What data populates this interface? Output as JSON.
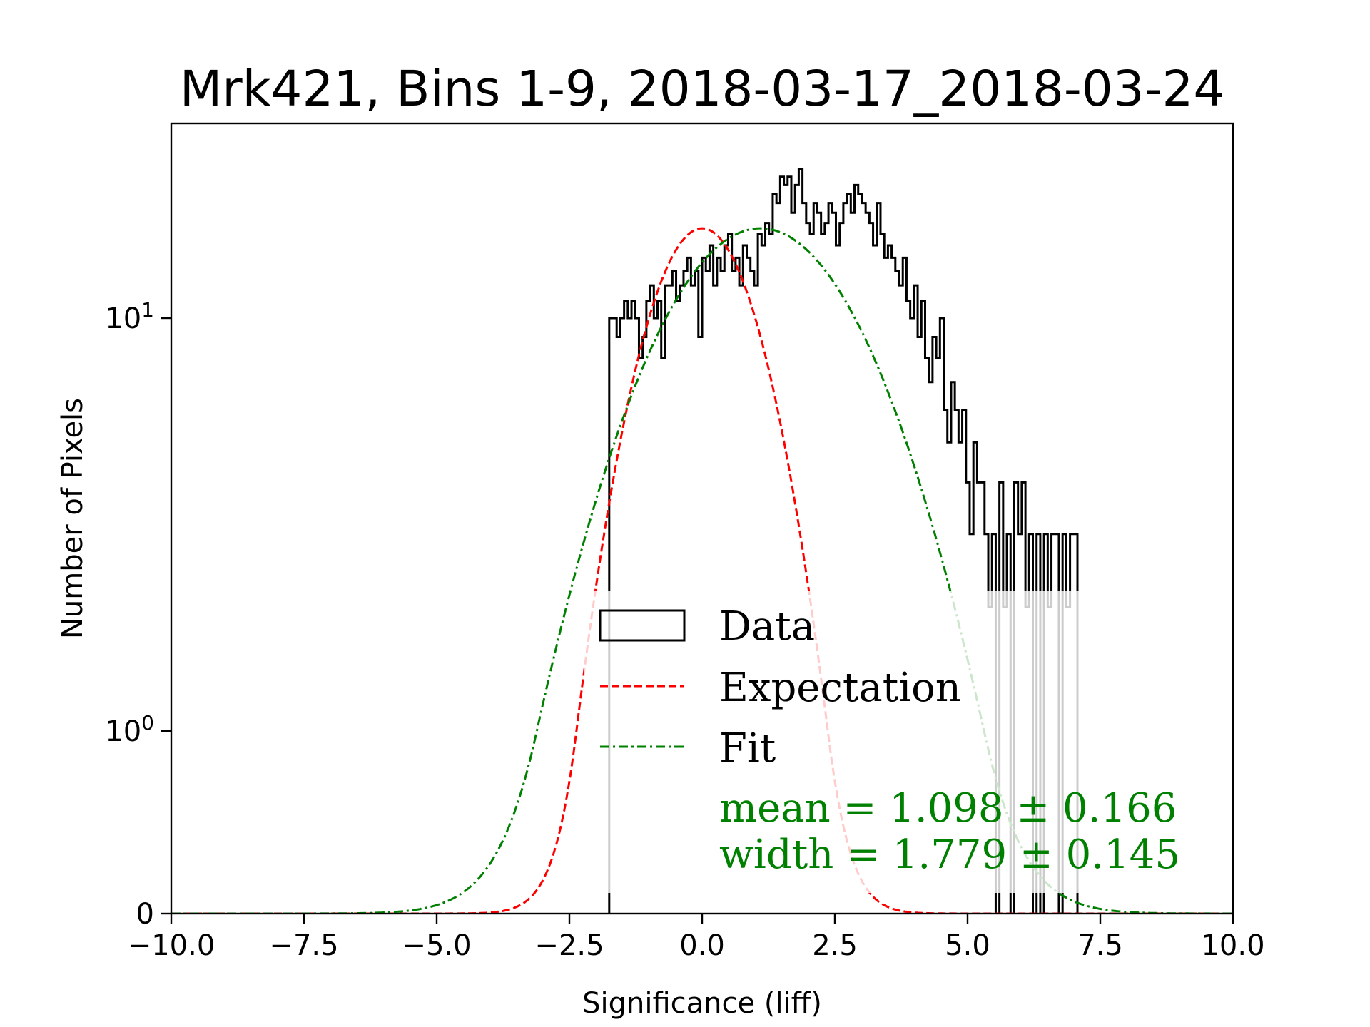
{
  "chart_data": {
    "type": "histogram",
    "title": "Mrk421, Bins 1-9, 2018-03-17_2018-03-24",
    "xlabel": "Significance (liff)",
    "ylabel": "Number of Pixels",
    "xlim": [
      -10,
      10
    ],
    "ylim": [
      0,
      29.6
    ],
    "yscale": "symlog",
    "symlog_linthresh": 1,
    "x_ticks": [
      -10,
      -7.5,
      -5,
      -2.5,
      0,
      2.5,
      5,
      7.5,
      10
    ],
    "x_tick_labels": [
      "−10.0",
      "−7.5",
      "−5.0",
      "−2.5",
      "0.0",
      "2.5",
      "5.0",
      "7.5",
      "10.0"
    ],
    "y_ticks": [
      0,
      1,
      10
    ],
    "y_tick_labels": [
      {
        "base": "0",
        "exp": ""
      },
      {
        "base": "10",
        "exp": "0"
      },
      {
        "base": "10",
        "exp": "1"
      }
    ],
    "grid": false,
    "legend": {
      "placement": "lower-center",
      "entries": [
        {
          "label": "Data",
          "style": "step-box",
          "color": "#000000"
        },
        {
          "label": "Expectation",
          "style": "dashed",
          "color": "#ff0000"
        },
        {
          "label": "Fit",
          "style": "dashdot",
          "color": "#008000"
        }
      ]
    },
    "annotation": {
      "lines": [
        "mean = 1.098 ± 0.166",
        "width = 1.779 ± 0.145"
      ],
      "color": "#008000"
    },
    "histogram": {
      "bin_start": -1.75,
      "bin_width": 0.07,
      "counts": [
        10,
        10,
        9,
        10,
        11,
        10,
        11,
        10,
        8,
        9,
        11,
        12,
        10,
        11,
        8,
        12,
        12,
        13,
        11,
        12,
        13,
        14,
        12,
        13,
        9,
        14,
        13,
        15,
        12,
        14,
        13,
        15,
        16,
        13,
        14,
        12,
        15,
        14,
        13,
        12,
        16,
        15,
        17,
        16,
        20,
        19,
        22,
        21,
        22,
        18,
        21,
        23,
        19,
        17,
        16,
        19,
        18,
        16,
        17,
        19,
        18,
        15,
        17,
        19,
        20,
        18,
        21,
        20,
        19,
        18,
        17,
        15,
        19,
        16,
        14,
        15,
        14,
        13,
        12,
        14,
        11,
        10,
        12,
        9,
        11,
        8,
        7,
        9,
        8,
        10,
        6,
        5,
        7,
        6,
        5,
        6,
        4,
        3,
        5,
        4,
        4,
        3,
        2,
        3,
        0,
        4,
        2,
        3,
        0,
        4,
        3,
        4,
        2,
        3,
        0,
        3,
        0,
        3,
        2,
        3,
        3,
        0,
        3,
        2,
        3,
        3,
        0
      ],
      "color": "#000000"
    },
    "expectation": {
      "mean": 0.0,
      "width": 1.0,
      "amplitude": 16.5,
      "color": "#ff0000"
    },
    "fit": {
      "mean": 1.098,
      "width": 1.779,
      "amplitude": 16.5,
      "color": "#008000"
    }
  }
}
